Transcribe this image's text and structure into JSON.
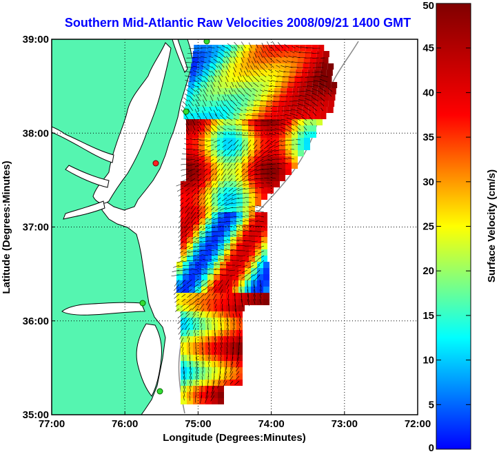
{
  "chart_data": {
    "type": "heatmap",
    "title": "Southern Mid-Atlantic Raw Velocities 2008/09/21 1400 GMT",
    "xlabel": "Longitude (Degrees:Minutes)",
    "ylabel": "Latitude (Degrees:Minutes)",
    "colorbar_label": "Surface Velocity (cm/s)",
    "xlim": [
      -77,
      -72
    ],
    "ylim": [
      35,
      39
    ],
    "x_ticks": [
      {
        "value": -77,
        "label": "77:00"
      },
      {
        "value": -76,
        "label": "76:00"
      },
      {
        "value": -75,
        "label": "75:00"
      },
      {
        "value": -74,
        "label": "74:00"
      },
      {
        "value": -73,
        "label": "73:00"
      },
      {
        "value": -72,
        "label": "72:00"
      }
    ],
    "y_ticks": [
      {
        "value": 35,
        "label": "35:00"
      },
      {
        "value": 36,
        "label": "36:00"
      },
      {
        "value": 37,
        "label": "37:00"
      },
      {
        "value": 38,
        "label": "38:00"
      },
      {
        "value": 39,
        "label": "39:00"
      }
    ],
    "colorbar_range": [
      0,
      50
    ],
    "colorbar_ticks": [
      "0",
      "5",
      "10",
      "15",
      "20",
      "25",
      "30",
      "35",
      "40",
      "45",
      "50"
    ],
    "colormap": "jet",
    "grid": "dotted",
    "colors": {
      "title": "#0000ff",
      "land": "#55f5b0",
      "water": "#ffffff",
      "coast": "#000000",
      "isobath": "#888888",
      "site_marker": "#33dd33",
      "site_marker_red": "#ff2222"
    }
  }
}
